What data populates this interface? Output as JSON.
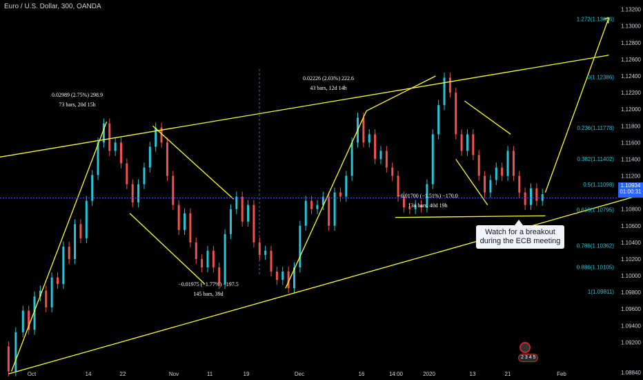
{
  "header": {
    "title": "Euro / U.S. Dollar, 300, OANDA"
  },
  "callout": {
    "line1": "Watch for a breakout",
    "line2": "during the ECB meeting"
  },
  "current_price": {
    "value": "1.10934",
    "countdown": "01:00:31"
  },
  "logo_badge": "2 3 4 5",
  "colors": {
    "background": "#000000",
    "up_candle": "#26c6da",
    "down_candle": "#ef5350",
    "trendline": "#ffff33",
    "fib_label": "#26c6da",
    "axis_text": "#d1d4dc",
    "price_line": "#2962ff"
  },
  "chart_data": {
    "type": "candlestick",
    "title": "Euro / U.S. Dollar, 300, OANDA",
    "x_tick_labels": [
      "Oct",
      "14",
      "22",
      "Nov",
      "11",
      "19",
      "Dec",
      "16",
      "14:00",
      "2020",
      "13",
      "21",
      "Feb"
    ],
    "y_tick_labels": [
      "1.13200",
      "1.13000",
      "1.12800",
      "1.12600",
      "1.12400",
      "1.12200",
      "1.12000",
      "1.11800",
      "1.11600",
      "1.11400",
      "1.11200",
      "1.11000",
      "1.10800",
      "1.10600",
      "1.10400",
      "1.10200",
      "1.10000",
      "1.09800",
      "1.09600",
      "1.09400",
      "1.09200",
      "1.08840"
    ],
    "ylim": [
      1.0878,
      1.1328
    ],
    "price_path": [
      [
        1,
        1.0915
      ],
      [
        3,
        1.0885
      ],
      [
        6,
        1.0932
      ],
      [
        8,
        1.0958
      ],
      [
        10,
        1.0935
      ],
      [
        12,
        1.0975
      ],
      [
        14,
        1.0982
      ],
      [
        16,
        1.0962
      ],
      [
        18,
        1.0998
      ],
      [
        20,
        1.099
      ],
      [
        22,
        1.1035
      ],
      [
        24,
        1.102
      ],
      [
        26,
        1.1062
      ],
      [
        28,
        1.1045
      ],
      [
        30,
        1.109
      ],
      [
        32,
        1.1121
      ],
      [
        34,
        1.116
      ],
      [
        36,
        1.1183
      ],
      [
        38,
        1.115
      ],
      [
        40,
        1.116
      ],
      [
        42,
        1.1135
      ],
      [
        44,
        1.111
      ],
      [
        46,
        1.1088
      ],
      [
        48,
        1.111
      ],
      [
        50,
        1.113
      ],
      [
        52,
        1.1155
      ],
      [
        54,
        1.1178
      ],
      [
        56,
        1.116
      ],
      [
        58,
        1.112
      ],
      [
        60,
        1.1085
      ],
      [
        62,
        1.1055
      ],
      [
        64,
        1.1075
      ],
      [
        66,
        1.104
      ],
      [
        68,
        1.102
      ],
      [
        70,
        1.101
      ],
      [
        72,
        1.103
      ],
      [
        74,
        1.101
      ],
      [
        76,
        1.099
      ],
      [
        78,
        1.105
      ],
      [
        80,
        1.108
      ],
      [
        82,
        1.1095
      ],
      [
        84,
        1.1065
      ],
      [
        86,
        1.1085
      ],
      [
        88,
        1.104
      ],
      [
        90,
        1.1025
      ],
      [
        92,
        1.103
      ],
      [
        94,
        1.1005
      ],
      [
        96,
        1.0995
      ],
      [
        98,
        1.1005
      ],
      [
        100,
        1.0985
      ],
      [
        102,
        1.101
      ],
      [
        104,
        1.106
      ],
      [
        106,
        1.109
      ],
      [
        108,
        1.108
      ],
      [
        110,
        1.1085
      ],
      [
        112,
        1.1095
      ],
      [
        114,
        1.106
      ],
      [
        116,
        1.11
      ],
      [
        118,
        1.1095
      ],
      [
        120,
        1.112
      ],
      [
        122,
        1.116
      ],
      [
        124,
        1.119
      ],
      [
        126,
        1.116
      ],
      [
        128,
        1.117
      ],
      [
        130,
        1.114
      ],
      [
        132,
        1.115
      ],
      [
        134,
        1.113
      ],
      [
        136,
        1.112
      ],
      [
        138,
        1.1095
      ],
      [
        140,
        1.1082
      ],
      [
        142,
        1.108
      ],
      [
        144,
        1.1085
      ],
      [
        146,
        1.1082
      ],
      [
        148,
        1.111
      ],
      [
        150,
        1.117
      ],
      [
        152,
        1.1205
      ],
      [
        154,
        1.1238
      ],
      [
        156,
        1.122
      ],
      [
        158,
        1.117
      ],
      [
        160,
        1.115
      ],
      [
        162,
        1.117
      ],
      [
        164,
        1.1145
      ],
      [
        166,
        1.112
      ],
      [
        168,
        1.11
      ],
      [
        170,
        1.1115
      ],
      [
        172,
        1.113
      ],
      [
        174,
        1.112
      ],
      [
        176,
        1.115
      ],
      [
        178,
        1.112
      ],
      [
        180,
        1.11
      ],
      [
        182,
        1.1085
      ],
      [
        184,
        1.1105
      ],
      [
        186,
        1.109
      ],
      [
        188,
        1.1098
      ]
    ],
    "fib_levels": [
      {
        "label": "0(1.12386)",
        "value": 1.12386
      },
      {
        "label": "0.236(1.11778)",
        "value": 1.11778
      },
      {
        "label": "0.382(1.11402)",
        "value": 1.11402
      },
      {
        "label": "0.5(1.11098)",
        "value": 1.11098
      },
      {
        "label": "0.618(1.10795)",
        "value": 1.10795
      },
      {
        "label": "0.786(1.10362)",
        "value": 1.10362
      },
      {
        "label": "0.886(1.10105)",
        "value": 1.10105
      },
      {
        "label": "1(1.09811)",
        "value": 1.09811
      },
      {
        "label": "1.272(1.13086)",
        "value": 1.13086
      }
    ],
    "measure_annotations": [
      {
        "line1": "0.02989 (2.75%) 298.9",
        "line2": "73 bars, 20d 15h"
      },
      {
        "line1": "0.02226 (2.03%) 222.6",
        "line2": "43 bars, 12d 14h"
      },
      {
        "line1": "−0.01975 (−1.77%) −197.5",
        "line2": "145 bars, 39d"
      },
      {
        "line1": "−0.01700 (−1.51%) −170.0",
        "line2": "134 bars, 40d 19h"
      }
    ],
    "grid": false
  }
}
